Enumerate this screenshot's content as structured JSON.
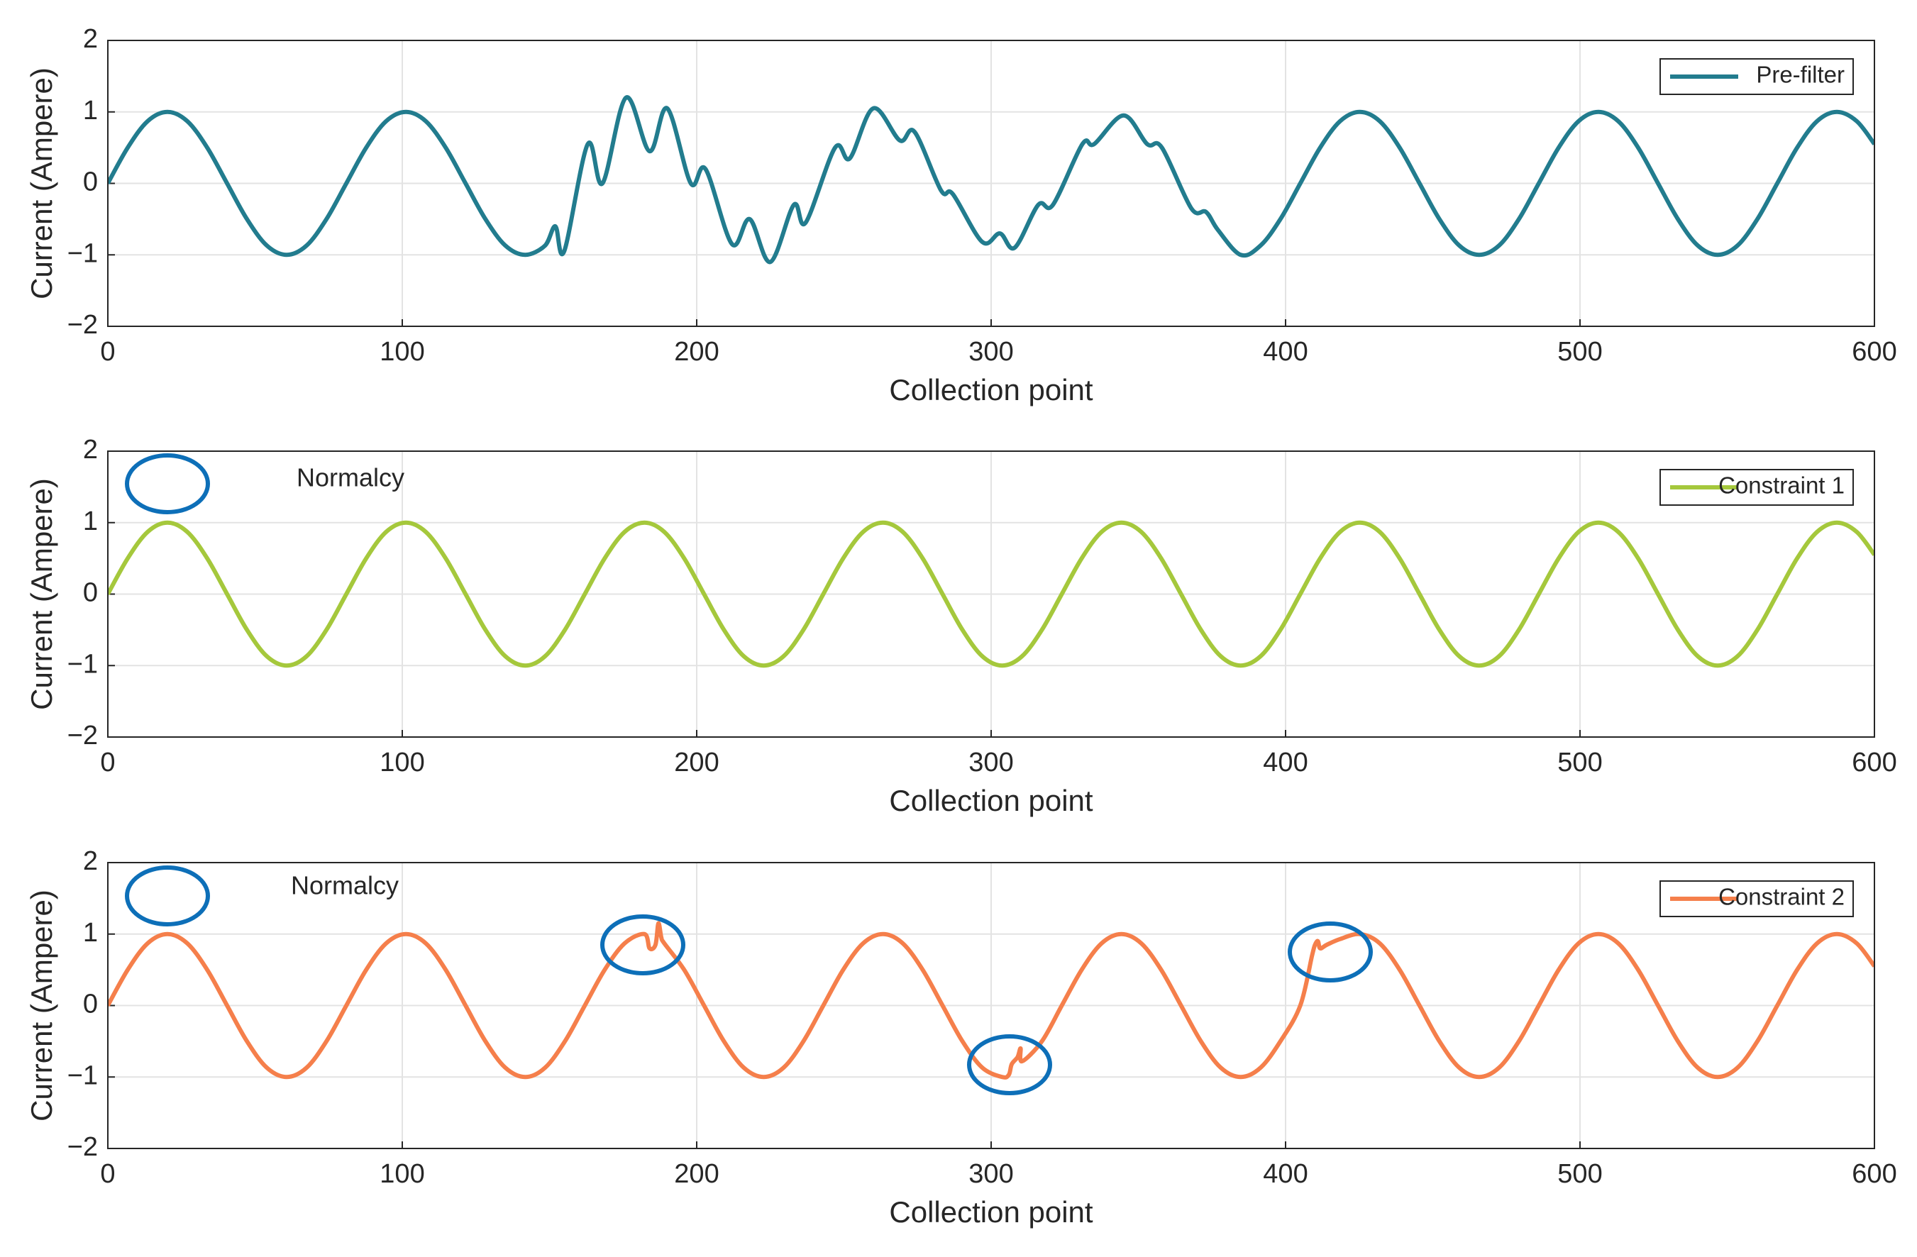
{
  "chart_data": [
    {
      "type": "line",
      "xlabel": "Collection point",
      "ylabel": "Current (Ampere)",
      "xlim": [
        0,
        600
      ],
      "ylim": [
        -2,
        2
      ],
      "xticks": [
        0,
        100,
        200,
        300,
        400,
        500,
        600
      ],
      "yticks": [
        {
          "value": -2,
          "label": "−2"
        },
        {
          "value": -1,
          "label": "−1"
        },
        0,
        1,
        2
      ],
      "grid": true,
      "legend": "upper right",
      "series": [
        {
          "name": "Pre-filter",
          "color": "#227c8e",
          "x": [
            0,
            6.75,
            13.5,
            20.25,
            27,
            33.75,
            40.5,
            47.25,
            54,
            60.75,
            67.5,
            74.25,
            81,
            87.75,
            94.5,
            101.25,
            108,
            114.75,
            121.5,
            128.25,
            135,
            141.75,
            148.5,
            152,
            155,
            163,
            168,
            176,
            184,
            190,
            198,
            203,
            212,
            218,
            225,
            233,
            237,
            247,
            252,
            260,
            269,
            274,
            283,
            287,
            297,
            303,
            308,
            316,
            321,
            331,
            335,
            345,
            353,
            358,
            368,
            373,
            377,
            384.75,
            391.5,
            398.25,
            405,
            411.75,
            418.5,
            425.25,
            432,
            438.75,
            445.5,
            452.25,
            459,
            465.75,
            472.5,
            479.25,
            486,
            492.75,
            499.5,
            506.25,
            513,
            519.75,
            526.5,
            533.25,
            540,
            546.75,
            553.5,
            560.25,
            567,
            573.75,
            580.5,
            587.25,
            594,
            600
          ],
          "values": [
            0,
            0.5,
            0.87,
            1,
            0.87,
            0.5,
            0,
            -0.5,
            -0.87,
            -1,
            -0.87,
            -0.5,
            0,
            0.5,
            0.87,
            1,
            0.87,
            0.5,
            0,
            -0.5,
            -0.87,
            -1,
            -0.87,
            -0.6,
            -0.95,
            0.55,
            0,
            1.2,
            0.45,
            1.05,
            0,
            0.2,
            -0.85,
            -0.5,
            -1.1,
            -0.3,
            -0.55,
            0.5,
            0.35,
            1.05,
            0.6,
            0.72,
            -0.1,
            -0.15,
            -0.82,
            -0.7,
            -0.9,
            -0.3,
            -0.3,
            0.55,
            0.55,
            0.95,
            0.55,
            0.5,
            -0.35,
            -0.4,
            -0.65,
            -1,
            -0.87,
            -0.5,
            0,
            0.5,
            0.87,
            1,
            0.87,
            0.5,
            0,
            -0.5,
            -0.87,
            -1,
            -0.87,
            -0.5,
            0,
            0.5,
            0.87,
            1,
            0.87,
            0.5,
            0,
            -0.5,
            -0.87,
            -1,
            -0.87,
            -0.5,
            0,
            0.5,
            0.87,
            1,
            0.87,
            0.55
          ]
        }
      ]
    },
    {
      "type": "line",
      "xlabel": "Collection point",
      "ylabel": "Current (Ampere)",
      "xlim": [
        0,
        600
      ],
      "ylim": [
        -2,
        2
      ],
      "xticks": [
        0,
        100,
        200,
        300,
        400,
        500,
        600
      ],
      "yticks": [
        {
          "value": -2,
          "label": "−2"
        },
        {
          "value": -1,
          "label": "−1"
        },
        0,
        1,
        2
      ],
      "grid": true,
      "legend": "upper right",
      "annotation": "Normalcy",
      "series": [
        {
          "name": "Constraint 1",
          "color": "#a5c83c",
          "x": [
            0,
            6.75,
            13.5,
            20.25,
            27,
            33.75,
            40.5,
            47.25,
            54,
            60.75,
            67.5,
            74.25,
            81,
            87.75,
            94.5,
            101.25,
            108,
            114.75,
            121.5,
            128.25,
            135,
            141.75,
            148.5,
            155.25,
            162,
            168.75,
            175.5,
            182.25,
            189,
            195.75,
            202.5,
            209.25,
            216,
            222.75,
            229.5,
            236.25,
            243,
            249.75,
            256.5,
            263.25,
            270,
            276.75,
            283.5,
            290.25,
            297,
            303.75,
            310.5,
            317.25,
            324,
            330.75,
            337.5,
            344.25,
            351,
            357.75,
            364.5,
            371.25,
            378,
            384.75,
            391.5,
            398.25,
            405,
            411.75,
            418.5,
            425.25,
            432,
            438.75,
            445.5,
            452.25,
            459,
            465.75,
            472.5,
            479.25,
            486,
            492.75,
            499.5,
            506.25,
            513,
            519.75,
            526.5,
            533.25,
            540,
            546.75,
            553.5,
            560.25,
            567,
            573.75,
            580.5,
            587.25,
            594,
            600
          ],
          "values": [
            0,
            0.5,
            0.87,
            1,
            0.87,
            0.5,
            0,
            -0.5,
            -0.87,
            -1,
            -0.87,
            -0.5,
            0,
            0.5,
            0.87,
            1,
            0.87,
            0.5,
            0,
            -0.5,
            -0.87,
            -1,
            -0.87,
            -0.5,
            0,
            0.5,
            0.87,
            1,
            0.87,
            0.5,
            0,
            -0.5,
            -0.87,
            -1,
            -0.87,
            -0.5,
            0,
            0.5,
            0.87,
            1,
            0.87,
            0.5,
            0,
            -0.5,
            -0.87,
            -1,
            -0.87,
            -0.5,
            0,
            0.5,
            0.87,
            1,
            0.87,
            0.5,
            0,
            -0.5,
            -0.87,
            -1,
            -0.87,
            -0.5,
            0,
            0.5,
            0.87,
            1,
            0.87,
            0.5,
            0,
            -0.5,
            -0.87,
            -1,
            -0.87,
            -0.5,
            0,
            0.5,
            0.87,
            1,
            0.87,
            0.5,
            0,
            -0.5,
            -0.87,
            -1,
            -0.87,
            -0.5,
            0,
            0.5,
            0.87,
            1,
            0.87,
            0.55
          ]
        }
      ]
    },
    {
      "type": "line",
      "xlabel": "Collection point",
      "ylabel": "Current (Ampere)",
      "xlim": [
        0,
        600
      ],
      "ylim": [
        -2,
        2
      ],
      "xticks": [
        0,
        100,
        200,
        300,
        400,
        500,
        600
      ],
      "yticks": [
        {
          "value": -2,
          "label": "−2"
        },
        {
          "value": -1,
          "label": "−1"
        },
        0,
        1,
        2
      ],
      "grid": true,
      "legend": "upper right",
      "annotation": "Normalcy",
      "series": [
        {
          "name": "Constraint 2",
          "color": "#f57f4b",
          "x": [
            0,
            6.75,
            13.5,
            20.25,
            27,
            33.75,
            40.5,
            47.25,
            54,
            60.75,
            67.5,
            74.25,
            81,
            87.75,
            94.5,
            101.25,
            108,
            114.75,
            121.5,
            128.25,
            135,
            141.75,
            148.5,
            155.25,
            162,
            168.75,
            175.5,
            182.25,
            184,
            186,
            187,
            188,
            189,
            195.75,
            202.5,
            209.25,
            216,
            222.75,
            229.5,
            236.25,
            243,
            249.75,
            256.5,
            263.25,
            270,
            276.75,
            283.5,
            290.25,
            297,
            303.75,
            306,
            307,
            309,
            310,
            310.5,
            317.25,
            324,
            330.75,
            337.5,
            344.25,
            351,
            357.75,
            364.5,
            371.25,
            378,
            384.75,
            391.5,
            398.25,
            405,
            409,
            410,
            411,
            411.75,
            414,
            418.5,
            425.25,
            432,
            438.75,
            445.5,
            452.25,
            459,
            465.75,
            472.5,
            479.25,
            486,
            492.75,
            499.5,
            506.25,
            513,
            519.75,
            526.5,
            533.25,
            540,
            546.75,
            553.5,
            560.25,
            567,
            573.75,
            580.5,
            587.25,
            594,
            600
          ],
          "values": [
            0,
            0.5,
            0.87,
            1,
            0.87,
            0.5,
            0,
            -0.5,
            -0.87,
            -1,
            -0.87,
            -0.5,
            0,
            0.5,
            0.87,
            1,
            0.87,
            0.5,
            0,
            -0.5,
            -0.87,
            -1,
            -0.87,
            -0.5,
            0,
            0.5,
            0.87,
            1,
            0.8,
            0.85,
            1.15,
            0.95,
            0.87,
            0.5,
            0,
            -0.5,
            -0.87,
            -1,
            -0.87,
            -0.5,
            0,
            0.5,
            0.87,
            1,
            0.87,
            0.5,
            0,
            -0.5,
            -0.87,
            -1,
            -0.97,
            -0.82,
            -0.72,
            -0.6,
            -0.78,
            -0.5,
            0,
            0.5,
            0.87,
            1,
            0.87,
            0.5,
            0,
            -0.5,
            -0.87,
            -1,
            -0.87,
            -0.5,
            0,
            0.7,
            0.85,
            0.9,
            0.8,
            0.85,
            0.93,
            1,
            0.87,
            0.5,
            0,
            -0.5,
            -0.87,
            -1,
            -0.87,
            -0.5,
            0,
            0.5,
            0.87,
            1,
            0.87,
            0.5,
            0,
            -0.5,
            -0.87,
            -1,
            -0.87,
            -0.5,
            0,
            0.5,
            0.87,
            1,
            0.87,
            0.55
          ]
        }
      ]
    }
  ]
}
